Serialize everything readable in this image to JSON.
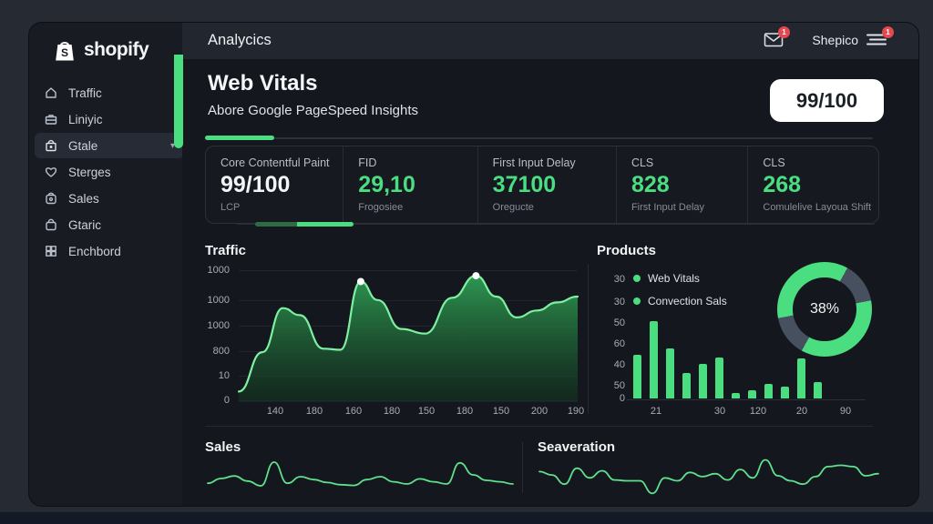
{
  "app": {
    "brand": "shopify",
    "header_title": "Analycics",
    "account_name": "Shepico",
    "mail_badge": "1",
    "menu_badge": "1"
  },
  "sidebar": {
    "items": [
      {
        "label": "Traffic"
      },
      {
        "label": "Liniyic"
      },
      {
        "label": "Gtale"
      },
      {
        "label": "Sterges"
      },
      {
        "label": "Sales"
      },
      {
        "label": "Gtaric"
      },
      {
        "label": "Enchbord"
      }
    ]
  },
  "main": {
    "title": "Web Vitals",
    "subtitle": "Abore Google PageSpeed Insights",
    "score_badge": "99/100",
    "metrics": [
      {
        "label": "Core Contentful Paint",
        "value": "99/100",
        "sublabel": "LCP",
        "value_color": "#f2f4f6"
      },
      {
        "label": "FID",
        "value": "29,10",
        "sublabel": "Frogosiee",
        "value_color": "#4ade80"
      },
      {
        "label": "First Input Delay",
        "value": "37100",
        "sublabel": "Oregucte",
        "value_color": "#4ade80"
      },
      {
        "label": "CLS",
        "value": "828",
        "sublabel": "First Input Delay",
        "value_color": "#4ade80"
      },
      {
        "label": "CLS",
        "value": "268",
        "sublabel": "Comulelive Layoua Shift",
        "value_color": "#4ade80"
      }
    ]
  },
  "colors": {
    "accent_green": "#4ade80",
    "donut_gray": "#46505e",
    "badge_red": "#e5484d"
  },
  "chart_data": [
    {
      "type": "area",
      "title": "Traffic",
      "y_ticks": [
        "1000",
        "1000",
        "1000",
        "800",
        "10",
        "0"
      ],
      "x_ticks": [
        "140",
        "180",
        "160",
        "180",
        "150",
        "180",
        "150",
        "200",
        "190"
      ],
      "ylim": [
        0,
        1100
      ],
      "grid": true,
      "points": [
        [
          0,
          60
        ],
        [
          7,
          400
        ],
        [
          13,
          780
        ],
        [
          18,
          720
        ],
        [
          25,
          430
        ],
        [
          30,
          420
        ],
        [
          36,
          1010
        ],
        [
          41,
          850
        ],
        [
          48,
          600
        ],
        [
          55,
          560
        ],
        [
          63,
          870
        ],
        [
          70,
          1060
        ],
        [
          76,
          880
        ],
        [
          82,
          700
        ],
        [
          88,
          760
        ],
        [
          94,
          830
        ],
        [
          100,
          880
        ]
      ],
      "marker_indexes": [
        6,
        11
      ]
    },
    {
      "type": "bar",
      "title": "Products",
      "legend": [
        {
          "label": "Web Vitals"
        },
        {
          "label": "Convection Sals"
        }
      ],
      "y_ticks": [
        "30",
        "30",
        "50",
        "60",
        "40",
        "50",
        "0"
      ],
      "x_ticks": [
        "21",
        "30",
        "120",
        "20",
        "90"
      ],
      "ylim": [
        0,
        60
      ],
      "values": [
        34,
        60,
        39,
        20,
        27,
        32,
        4,
        6,
        11,
        9,
        31,
        13
      ]
    },
    {
      "type": "pie",
      "center_label": "38%",
      "segments": [
        {
          "color": "#4ade80",
          "pct": 8
        },
        {
          "color": "#46505e",
          "pct": 14
        },
        {
          "color": "#4ade80",
          "pct": 36
        },
        {
          "color": "#46505e",
          "pct": 14
        },
        {
          "color": "#4ade80",
          "pct": 28
        }
      ]
    },
    {
      "type": "line",
      "title": "Sales",
      "values": [
        32,
        45,
        52,
        38,
        25,
        90,
        32,
        50,
        42,
        34,
        28,
        26,
        42,
        50,
        36,
        30,
        44,
        36,
        30,
        88,
        55,
        40,
        36,
        30
      ]
    },
    {
      "type": "line",
      "title": "Seaveration",
      "values": [
        60,
        52,
        30,
        68,
        45,
        62,
        40,
        38,
        38,
        8,
        45,
        38,
        58,
        48,
        55,
        40,
        65,
        45,
        88,
        50,
        38,
        30,
        48,
        72,
        75,
        72,
        50,
        55
      ]
    }
  ]
}
